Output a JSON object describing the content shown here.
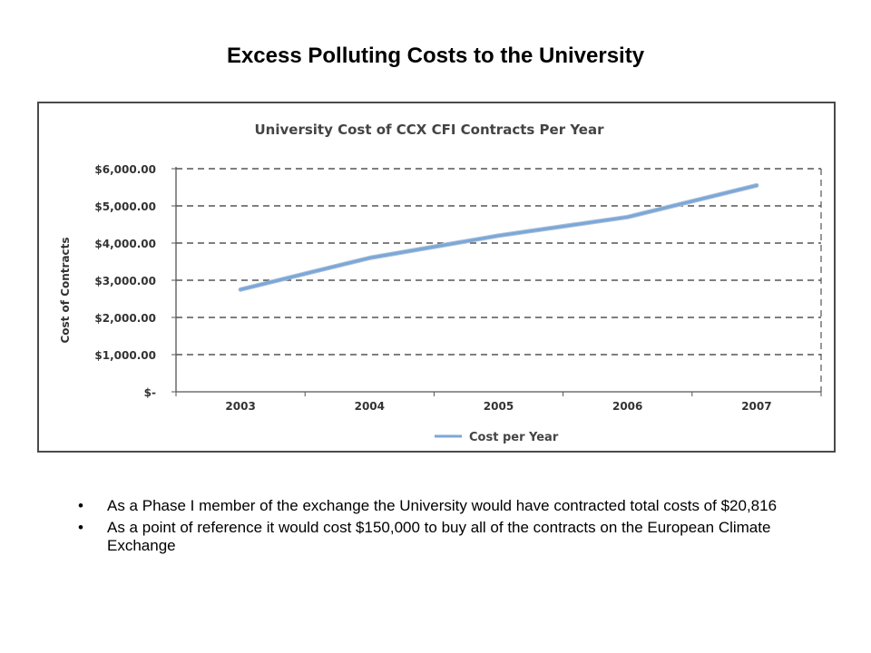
{
  "slide": {
    "title": "Excess Polluting Costs to the University"
  },
  "bullets": [
    {
      "marker": "•",
      "text": "As a Phase I member of the exchange the University would have contracted total costs of $20,816"
    },
    {
      "marker": "•",
      "text": "As a point of reference it would cost $150,000 to buy all of the contracts on the European Climate Exchange"
    }
  ],
  "chart_data": {
    "type": "line",
    "title": "University Cost of CCX CFI Contracts Per Year",
    "xlabel": "",
    "ylabel": "Cost of Contracts",
    "categories": [
      "2003",
      "2004",
      "2005",
      "2006",
      "2007"
    ],
    "series": [
      {
        "name": "Cost per Year",
        "values": [
          2750,
          3600,
          4200,
          4700,
          5550
        ],
        "color": "#7ba7d9"
      }
    ],
    "ylim": [
      0,
      6000
    ],
    "yticks": [
      0,
      1000,
      2000,
      3000,
      4000,
      5000,
      6000
    ],
    "ytick_labels": [
      "$-",
      "$1,000.00",
      "$2,000.00",
      "$3,000.00",
      "$4,000.00",
      "$5,000.00",
      "$6,000.00"
    ],
    "grid": true,
    "legend_position": "bottom"
  }
}
